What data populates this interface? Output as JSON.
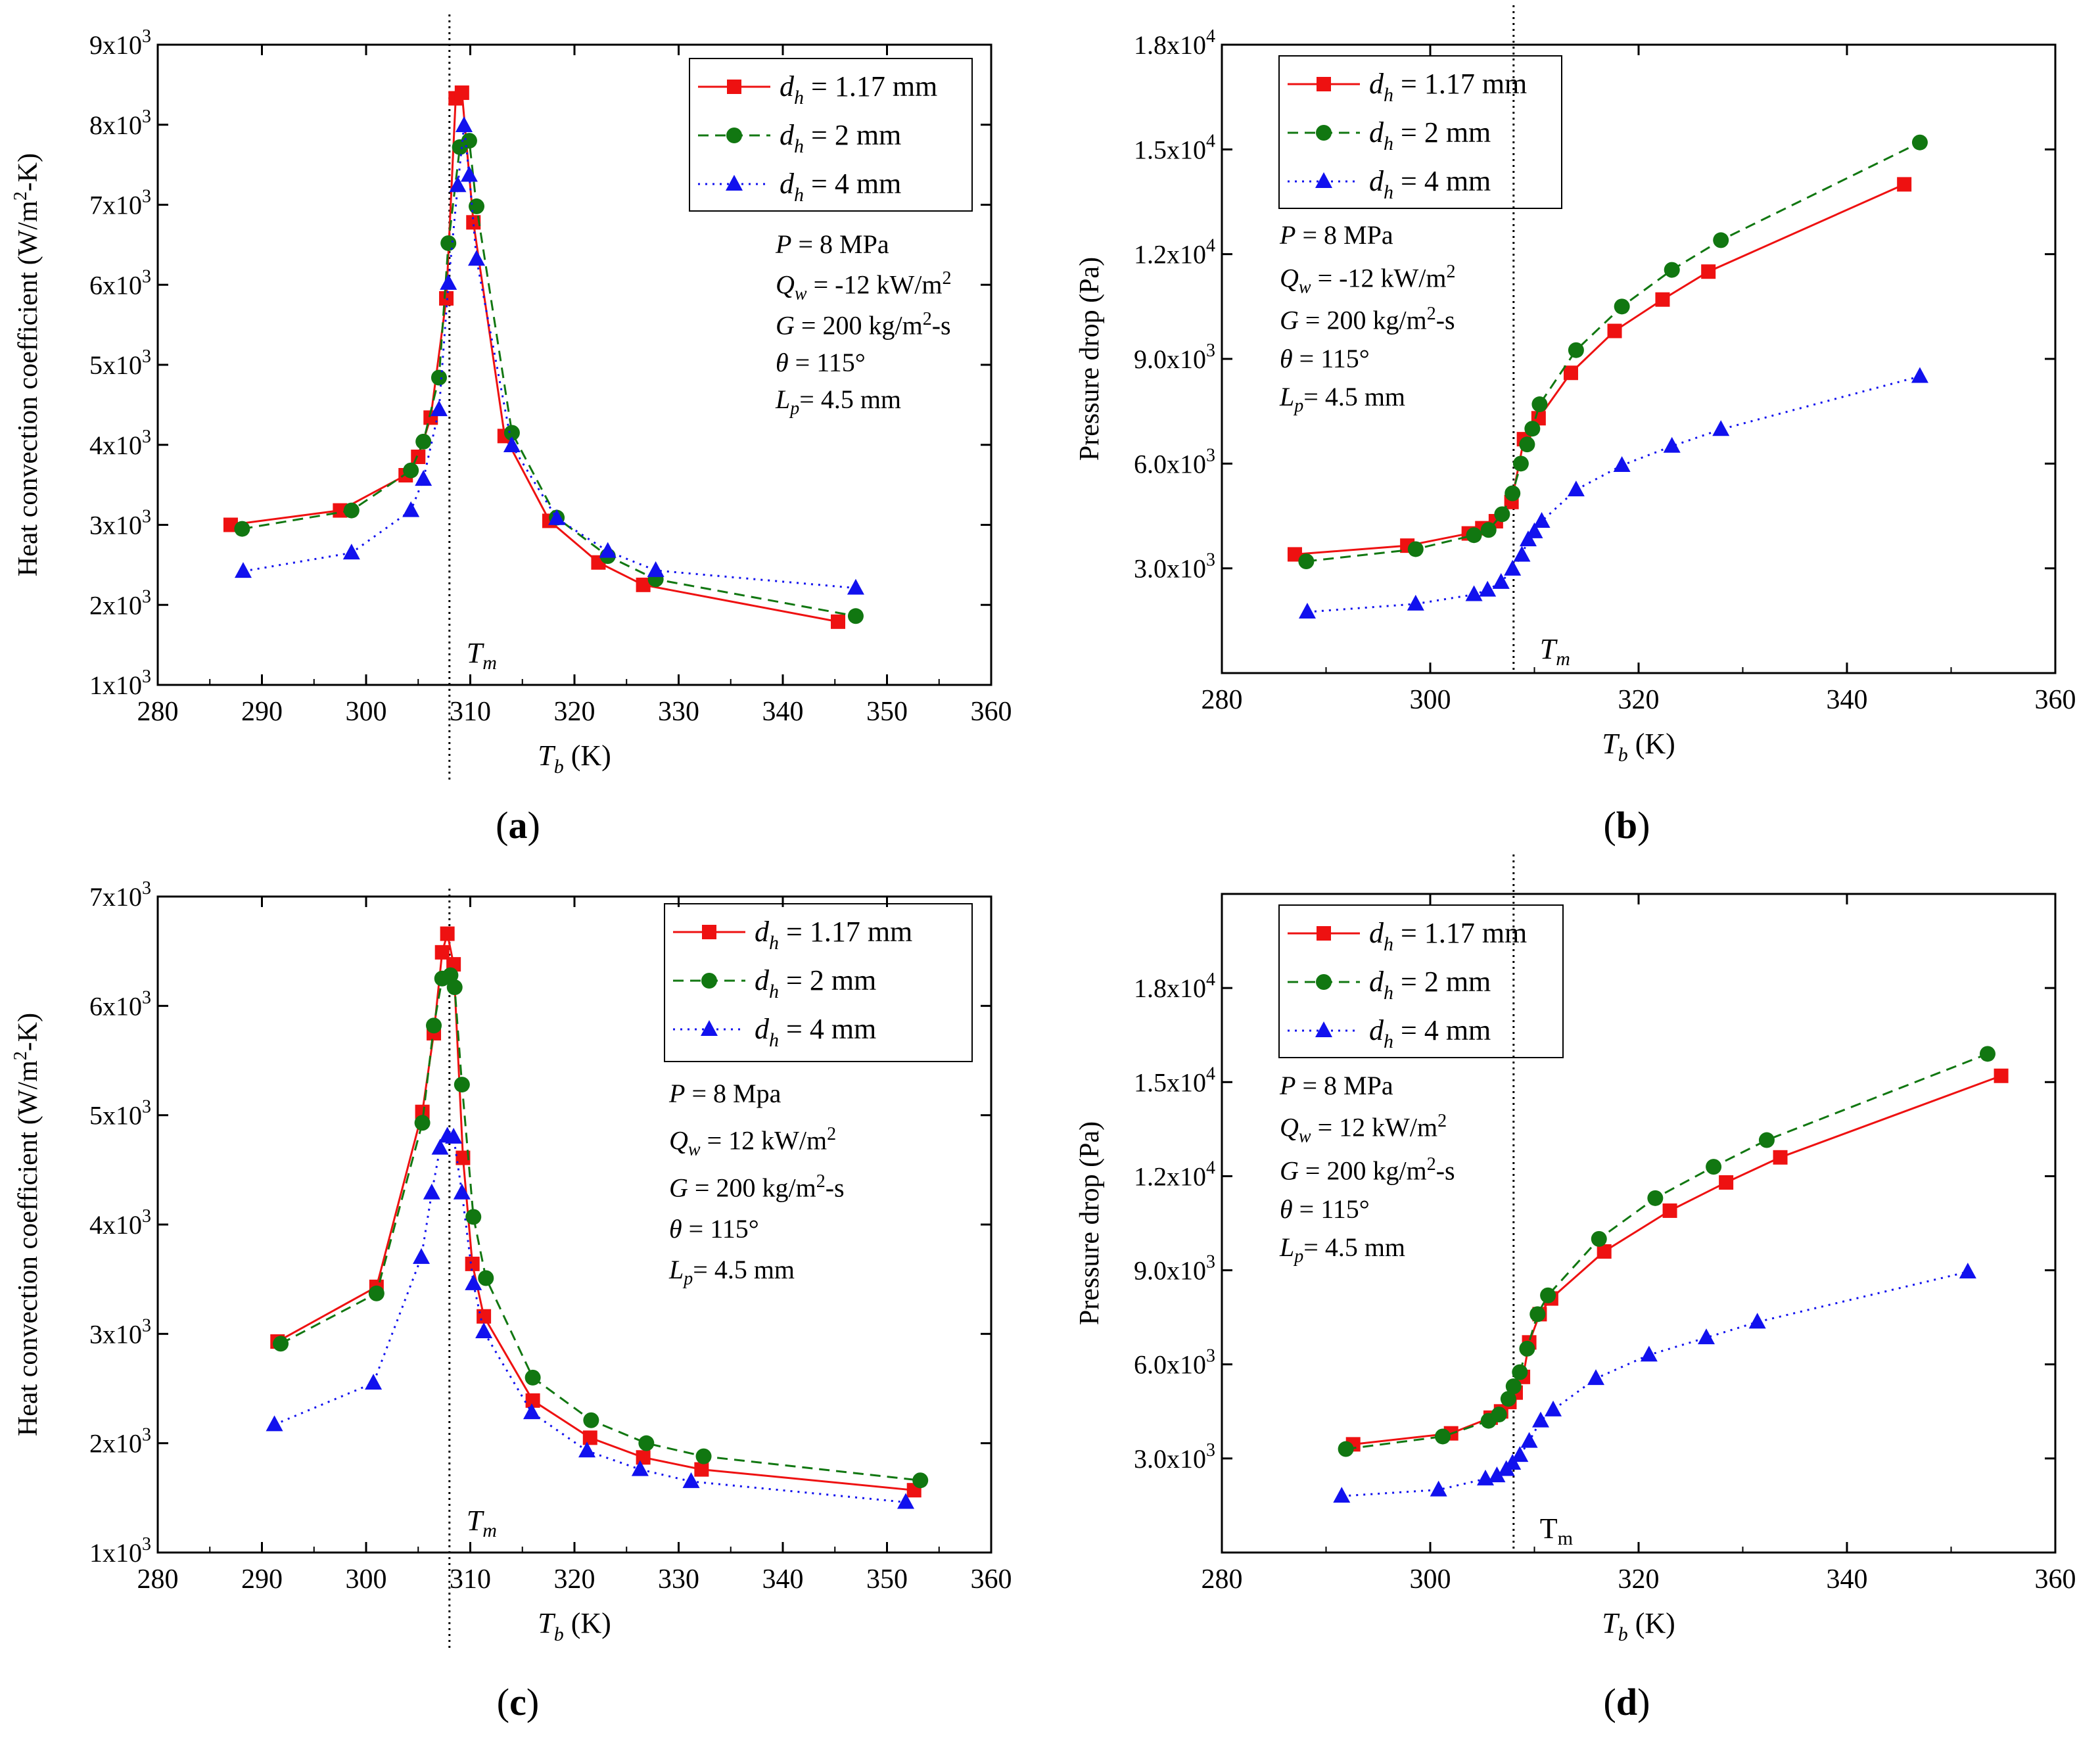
{
  "colors": {
    "series_1": "#ee1111",
    "series_2": "#117711",
    "series_3": "#1111ee",
    "axis": "#000000"
  },
  "panels": [
    {
      "caption": "a",
      "conditions": [
        "P = 8 MPa",
        "Qw = -12 kW/m2",
        "G = 200 kg/m2-s",
        "θ = 115°",
        "Lp = 4.5 mm"
      ],
      "tm_label": "Tm"
    },
    {
      "caption": "b",
      "conditions": [
        "P = 8 MPa",
        "Qw = -12 kW/m2",
        "G = 200 kg/m2-s",
        "θ = 115°",
        "Lp = 4.5 mm"
      ],
      "tm_label": "Tm"
    },
    {
      "caption": "c",
      "conditions": [
        "P = 8 Mpa",
        "Qw = 12 kW/m2",
        "G = 200 kg/m2-s",
        "θ = 115°",
        "Lp = 4.5 mm"
      ],
      "tm_label": "Tm"
    },
    {
      "caption": "d",
      "conditions": [
        "P = 8 MPa",
        "Qw = 12 kW/m2",
        "G = 200 kg/m2-s",
        "θ = 115°",
        "Lp = 4.5 mm"
      ],
      "tm_label": "Tm"
    }
  ],
  "chart_data": [
    {
      "type": "line",
      "xlabel": "Tb (K)",
      "ylabel": "Heat convection coefficient (W/m2-K)",
      "xlim": [
        280,
        360
      ],
      "ylim": [
        1000,
        9000
      ],
      "xticks": [
        280,
        290,
        300,
        310,
        320,
        330,
        340,
        350,
        360
      ],
      "yticks": [
        1000,
        2000,
        3000,
        4000,
        5000,
        6000,
        7000,
        8000,
        9000
      ],
      "ytick_labels": [
        [
          "1x10",
          "3"
        ],
        [
          "2x10",
          "3"
        ],
        [
          "3x10",
          "3"
        ],
        [
          "4x10",
          "3"
        ],
        [
          "5x10",
          "3"
        ],
        [
          "6x10",
          "3"
        ],
        [
          "7x10",
          "3"
        ],
        [
          "8x10",
          "3"
        ],
        [
          "9x10",
          "3"
        ]
      ],
      "vline_x": 308,
      "legend": "top-right",
      "series": [
        {
          "name": "dh = 1.17 mm",
          "marker": "square",
          "style": "solid",
          "x": [
            287,
            297.5,
            303.8,
            305,
            306.2,
            307.7,
            308.6,
            309.2,
            310.3,
            313.3,
            317.6,
            322.3,
            326.6,
            345.3
          ],
          "y": [
            3000,
            3180,
            3620,
            3850,
            4340,
            5830,
            8330,
            8400,
            6780,
            4110,
            3050,
            2530,
            2250,
            1790
          ]
        },
        {
          "name": "dh = 2 mm",
          "marker": "circle",
          "style": "dashed",
          "x": [
            288.1,
            298.6,
            304.3,
            305.5,
            307,
            307.9,
            309,
            309.9,
            310.6,
            314,
            318.3,
            323.2,
            327.8,
            347
          ],
          "y": [
            2950,
            3180,
            3680,
            4040,
            4840,
            6520,
            7720,
            7800,
            6980,
            4150,
            3090,
            2610,
            2320,
            1860
          ]
        },
        {
          "name": "dh = 4 mm",
          "marker": "triangle",
          "style": "dotted",
          "x": [
            288.2,
            298.6,
            304.3,
            305.5,
            307,
            307.9,
            308.8,
            309.4,
            309.9,
            310.6,
            314,
            318.3,
            323.2,
            327.8,
            347
          ],
          "y": [
            2420,
            2650,
            3180,
            3570,
            4440,
            6020,
            7240,
            7990,
            7370,
            6320,
            3990,
            3080,
            2670,
            2430,
            2210
          ]
        }
      ]
    },
    {
      "type": "line",
      "xlabel": "Tb (K)",
      "ylabel": "Pressure drop (Pa)",
      "xlim": [
        280,
        360
      ],
      "ylim": [
        0,
        18000
      ],
      "xticks": [
        280,
        300,
        320,
        340,
        360
      ],
      "yticks": [
        3000,
        6000,
        9000,
        12000,
        15000,
        18000
      ],
      "ytick_labels": [
        [
          "3.0x10",
          "3"
        ],
        [
          "6.0x10",
          "3"
        ],
        [
          "9.0x10",
          "3"
        ],
        [
          "1.2x10",
          "4"
        ],
        [
          "1.5x10",
          "4"
        ],
        [
          "1.8x10",
          "4"
        ]
      ],
      "vline_x": 308,
      "legend": "top-left",
      "series": [
        {
          "name": "dh = 1.17 mm",
          "marker": "square",
          "style": "solid",
          "x": [
            287,
            297.8,
            303.7,
            305,
            306.3,
            307.8,
            309,
            310.4,
            313.5,
            317.7,
            322.3,
            326.7,
            345.5
          ],
          "y": [
            3400,
            3650,
            4000,
            4150,
            4350,
            4900,
            6700,
            7300,
            8600,
            9800,
            10700,
            11500,
            14000
          ]
        },
        {
          "name": "dh = 2 mm",
          "marker": "circle",
          "style": "dashed",
          "x": [
            288.1,
            298.6,
            304.2,
            305.6,
            306.9,
            307.9,
            308.7,
            309.3,
            309.8,
            310.5,
            314,
            318.4,
            323.2,
            327.9,
            347
          ],
          "y": [
            3200,
            3550,
            3950,
            4100,
            4550,
            5150,
            6000,
            6550,
            7000,
            7700,
            9250,
            10500,
            11550,
            12400,
            15200
          ]
        },
        {
          "name": "dh = 4 mm",
          "marker": "triangle",
          "style": "dotted",
          "x": [
            288.2,
            298.6,
            304.2,
            305.5,
            306.8,
            307.9,
            308.8,
            309.4,
            310,
            310.7,
            314,
            318.4,
            323.2,
            327.9,
            347
          ],
          "y": [
            1750,
            1980,
            2250,
            2380,
            2600,
            2980,
            3380,
            3820,
            4050,
            4350,
            5250,
            5950,
            6500,
            6980,
            8500
          ]
        }
      ]
    },
    {
      "type": "line",
      "xlabel": "Tb (K)",
      "ylabel": "Heat convection coefficient (W/m2-K)",
      "xlim": [
        280,
        360
      ],
      "ylim": [
        1000,
        7000
      ],
      "xticks": [
        280,
        290,
        300,
        310,
        320,
        330,
        340,
        350,
        360
      ],
      "yticks": [
        1000,
        2000,
        3000,
        4000,
        5000,
        6000,
        7000
      ],
      "ytick_labels": [
        [
          "1x10",
          "3"
        ],
        [
          "2x10",
          "3"
        ],
        [
          "3x10",
          "3"
        ],
        [
          "4x10",
          "3"
        ],
        [
          "5x10",
          "3"
        ],
        [
          "6x10",
          "3"
        ],
        [
          "7x10",
          "3"
        ]
      ],
      "vline_x": 308,
      "legend": "top-right",
      "series": [
        {
          "name": "dh = 1.17 mm",
          "marker": "square",
          "style": "solid",
          "x": [
            291.5,
            301,
            305.4,
            306.5,
            307.3,
            307.8,
            308.4,
            309.3,
            310.2,
            311.3,
            316,
            321.5,
            326.6,
            332.2,
            352.6
          ],
          "y": [
            2930,
            3430,
            5030,
            5750,
            6490,
            6660,
            6380,
            4610,
            3640,
            3160,
            2390,
            2050,
            1870,
            1760,
            1570
          ]
        },
        {
          "name": "dh = 2 mm",
          "marker": "circle",
          "style": "dashed",
          "x": [
            291.8,
            301,
            305.4,
            306.5,
            307.3,
            308.1,
            308.5,
            309.2,
            310.3,
            311.5,
            316,
            321.6,
            326.9,
            332.4,
            353.2
          ],
          "y": [
            2910,
            3370,
            4930,
            5820,
            6250,
            6280,
            6170,
            5280,
            4070,
            3510,
            2600,
            2210,
            2000,
            1880,
            1660
          ]
        },
        {
          "name": "dh = 4 mm",
          "marker": "triangle",
          "style": "dotted",
          "x": [
            291.2,
            300.7,
            305.3,
            306.3,
            307.1,
            307.8,
            308.4,
            309.2,
            310.3,
            311.3,
            315.9,
            321.2,
            326.3,
            331.2,
            351.8
          ],
          "y": [
            2170,
            2550,
            3700,
            4290,
            4700,
            4810,
            4800,
            4290,
            3460,
            3020,
            2280,
            1930,
            1760,
            1650,
            1460
          ]
        }
      ]
    },
    {
      "type": "line",
      "xlabel": "Tb (K)",
      "ylabel": "Pressure drop (Pa)",
      "xlim": [
        280,
        360
      ],
      "ylim": [
        0,
        21000
      ],
      "xticks": [
        280,
        300,
        320,
        340,
        360
      ],
      "yticks": [
        3000,
        6000,
        9000,
        12000,
        15000,
        18000
      ],
      "ytick_labels": [
        [
          "3.0x10",
          "3"
        ],
        [
          "6.0x10",
          "3"
        ],
        [
          "9.0x10",
          "3"
        ],
        [
          "1.2x10",
          "4"
        ],
        [
          "1.5x10",
          "4"
        ],
        [
          "1.8x10",
          "4"
        ]
      ],
      "vline_x": 308,
      "legend": "top-left",
      "series": [
        {
          "name": "dh = 1.17 mm",
          "marker": "square",
          "style": "solid",
          "x": [
            292.6,
            302,
            305.8,
            306.8,
            307.6,
            308.2,
            308.9,
            309.5,
            310.5,
            311.6,
            316.7,
            323,
            328.4,
            333.6,
            354.8
          ],
          "y": [
            3450,
            3800,
            4300,
            4500,
            4800,
            5100,
            5600,
            6700,
            7600,
            8100,
            9600,
            10900,
            11800,
            12600,
            15200
          ]
        },
        {
          "name": "dh = 2 mm",
          "marker": "circle",
          "style": "dashed",
          "x": [
            291.9,
            301.2,
            305.6,
            306.6,
            307.5,
            308,
            308.6,
            309.3,
            310.3,
            311.3,
            316.2,
            321.6,
            327.2,
            332.3,
            353.5
          ],
          "y": [
            3300,
            3700,
            4200,
            4400,
            4900,
            5300,
            5750,
            6500,
            7600,
            8200,
            10000,
            11300,
            12300,
            13150,
            15900
          ]
        },
        {
          "name": "dh = 4 mm",
          "marker": "triangle",
          "style": "dotted",
          "x": [
            291.5,
            300.8,
            305.3,
            306.4,
            307.3,
            307.9,
            308.6,
            309.5,
            310.6,
            311.8,
            315.9,
            321,
            326.5,
            331.4,
            351.6
          ],
          "y": [
            1800,
            2000,
            2350,
            2450,
            2650,
            2850,
            3100,
            3550,
            4200,
            4550,
            5550,
            6300,
            6850,
            7350,
            8950
          ]
        }
      ]
    }
  ]
}
